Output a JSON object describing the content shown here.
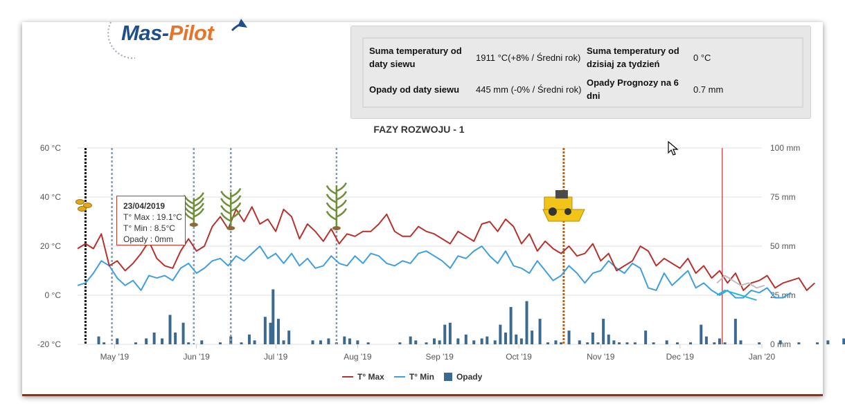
{
  "logo": {
    "part1": "Mas-",
    "part2": "Pilot"
  },
  "summary": {
    "rows": [
      {
        "label1": "Suma temperatury od daty siewu",
        "value1": "1911 °C(+8% / Średni rok)",
        "label2": "Suma temperatury od dzisiaj za tydzień",
        "value2": "0 °C"
      },
      {
        "label1": "Opady od daty siewu",
        "value1": "445 mm (-0% / Średni rok)",
        "label2": "Opady Prognozy na 6 dni",
        "value2": "0.7 mm"
      }
    ]
  },
  "tooltip": {
    "date": "23/04/2019",
    "tmax": "T° Max : 19.1°C",
    "tmin": "T° Min : 8.5°C",
    "rain": "Opady : 0mm"
  },
  "colors": {
    "tmax": "#b7312c",
    "tmin": "#3d9ee0",
    "rain": "#3a6a92",
    "forecast_max": "#bdbdbd",
    "forecast_min": "#29b6d8",
    "today_line": "#b7312c"
  },
  "chart_data": {
    "type": "line",
    "title": "FAZY ROZWOJU - 1",
    "x_range": [
      "2019-04-17",
      "2020-01-01"
    ],
    "x_ticks": [
      "May '19",
      "Jun '19",
      "Jul '19",
      "Aug '19",
      "Sep '19",
      "Oct '19",
      "Nov '19",
      "Dec '19",
      "Jan '20"
    ],
    "y_left": {
      "ticks": [
        "60 °C",
        "40 °C",
        "20 °C",
        "0 °C",
        "-20 °C"
      ],
      "range": [
        -20,
        60
      ]
    },
    "y_right": {
      "ticks": [
        "100 mm",
        "75 mm",
        "50 mm",
        "25 mm",
        "0 mm"
      ],
      "range": [
        0,
        100
      ]
    },
    "legend": [
      "T° Max",
      "T° Min",
      "Opady"
    ],
    "phase_markers": [
      {
        "date": "2019-04-20",
        "style": "sowing"
      },
      {
        "date": "2019-04-30",
        "style": "phase"
      },
      {
        "date": "2019-05-31",
        "style": "phase"
      },
      {
        "date": "2019-06-14",
        "style": "phase"
      },
      {
        "date": "2019-07-24",
        "style": "phase"
      },
      {
        "date": "2019-10-18",
        "style": "harvest"
      }
    ],
    "today": "2019-12-17",
    "series": [
      {
        "name": "T° Max",
        "values": [
          [
            0,
            19
          ],
          [
            3,
            21
          ],
          [
            6,
            19
          ],
          [
            9,
            25
          ],
          [
            12,
            12
          ],
          [
            15,
            14
          ],
          [
            18,
            10
          ],
          [
            21,
            13
          ],
          [
            24,
            17
          ],
          [
            27,
            22
          ],
          [
            30,
            15
          ],
          [
            33,
            12
          ],
          [
            36,
            11
          ],
          [
            39,
            18
          ],
          [
            42,
            23
          ],
          [
            45,
            18
          ],
          [
            48,
            20
          ],
          [
            51,
            28
          ],
          [
            54,
            32
          ],
          [
            57,
            27
          ],
          [
            60,
            35
          ],
          [
            63,
            30
          ],
          [
            66,
            36
          ],
          [
            69,
            29
          ],
          [
            72,
            31
          ],
          [
            75,
            26
          ],
          [
            78,
            35
          ],
          [
            81,
            32
          ],
          [
            84,
            23
          ],
          [
            87,
            29
          ],
          [
            90,
            26
          ],
          [
            93,
            22
          ],
          [
            96,
            27
          ],
          [
            99,
            21
          ],
          [
            102,
            25
          ],
          [
            105,
            24
          ],
          [
            108,
            26
          ],
          [
            111,
            26
          ],
          [
            114,
            29
          ],
          [
            117,
            33
          ],
          [
            120,
            26
          ],
          [
            123,
            24
          ],
          [
            126,
            24
          ],
          [
            129,
            28
          ],
          [
            132,
            26
          ],
          [
            135,
            25
          ],
          [
            138,
            23
          ],
          [
            141,
            21
          ],
          [
            144,
            26
          ],
          [
            147,
            24
          ],
          [
            150,
            22
          ],
          [
            153,
            29
          ],
          [
            156,
            30
          ],
          [
            159,
            26
          ],
          [
            162,
            31
          ],
          [
            165,
            28
          ],
          [
            168,
            21
          ],
          [
            171,
            25
          ],
          [
            174,
            18
          ],
          [
            177,
            22
          ],
          [
            180,
            19
          ],
          [
            183,
            17
          ],
          [
            186,
            20
          ],
          [
            189,
            16
          ],
          [
            192,
            17
          ],
          [
            195,
            21
          ],
          [
            198,
            14
          ],
          [
            201,
            17
          ],
          [
            204,
            10
          ],
          [
            207,
            12
          ],
          [
            210,
            14
          ],
          [
            213,
            20
          ],
          [
            216,
            18
          ],
          [
            219,
            12
          ],
          [
            222,
            15
          ],
          [
            225,
            13
          ],
          [
            228,
            11
          ],
          [
            231,
            15
          ],
          [
            234,
            9
          ],
          [
            237,
            12
          ],
          [
            240,
            7
          ],
          [
            243,
            10
          ],
          [
            246,
            5
          ],
          [
            249,
            9
          ],
          [
            252,
            2
          ],
          [
            255,
            5
          ],
          [
            258,
            6
          ],
          [
            261,
            8
          ],
          [
            264,
            3
          ],
          [
            267,
            5
          ],
          [
            270,
            6
          ],
          [
            273,
            7
          ],
          [
            276,
            2
          ],
          [
            279,
            5
          ]
        ]
      },
      {
        "name": "T° Min",
        "values": [
          [
            0,
            4
          ],
          [
            3,
            5
          ],
          [
            6,
            9
          ],
          [
            9,
            14
          ],
          [
            12,
            12
          ],
          [
            15,
            7
          ],
          [
            18,
            4
          ],
          [
            21,
            6
          ],
          [
            24,
            2
          ],
          [
            27,
            8
          ],
          [
            30,
            7
          ],
          [
            33,
            8
          ],
          [
            36,
            6
          ],
          [
            39,
            11
          ],
          [
            42,
            13
          ],
          [
            45,
            9
          ],
          [
            48,
            11
          ],
          [
            51,
            14
          ],
          [
            54,
            15
          ],
          [
            57,
            12
          ],
          [
            60,
            16
          ],
          [
            63,
            14
          ],
          [
            66,
            17
          ],
          [
            69,
            20
          ],
          [
            72,
            15
          ],
          [
            75,
            17
          ],
          [
            78,
            13
          ],
          [
            81,
            17
          ],
          [
            84,
            12
          ],
          [
            87,
            15
          ],
          [
            90,
            11
          ],
          [
            93,
            12
          ],
          [
            96,
            16
          ],
          [
            99,
            13
          ],
          [
            102,
            12
          ],
          [
            105,
            16
          ],
          [
            108,
            13
          ],
          [
            111,
            17
          ],
          [
            114,
            16
          ],
          [
            117,
            13
          ],
          [
            120,
            12
          ],
          [
            123,
            14
          ],
          [
            126,
            13
          ],
          [
            129,
            17
          ],
          [
            132,
            18
          ],
          [
            135,
            16
          ],
          [
            138,
            14
          ],
          [
            141,
            11
          ],
          [
            144,
            16
          ],
          [
            147,
            15
          ],
          [
            150,
            18
          ],
          [
            153,
            20
          ],
          [
            156,
            16
          ],
          [
            159,
            13
          ],
          [
            162,
            18
          ],
          [
            165,
            12
          ],
          [
            168,
            11
          ],
          [
            171,
            9
          ],
          [
            174,
            14
          ],
          [
            177,
            10
          ],
          [
            180,
            6
          ],
          [
            183,
            8
          ],
          [
            186,
            12
          ],
          [
            189,
            9
          ],
          [
            192,
            5
          ],
          [
            195,
            9
          ],
          [
            198,
            10
          ],
          [
            201,
            14
          ],
          [
            204,
            11
          ],
          [
            207,
            9
          ],
          [
            210,
            13
          ],
          [
            213,
            11
          ],
          [
            216,
            3
          ],
          [
            219,
            2
          ],
          [
            222,
            9
          ],
          [
            225,
            4
          ],
          [
            228,
            7
          ],
          [
            231,
            10
          ],
          [
            234,
            3
          ],
          [
            237,
            5
          ],
          [
            240,
            2
          ],
          [
            243,
            0
          ],
          [
            246,
            2
          ],
          [
            249,
            -1
          ],
          [
            252,
            -1
          ],
          [
            255,
            2
          ],
          [
            258,
            1
          ],
          [
            261,
            3
          ],
          [
            264,
            -1
          ],
          [
            267,
            -1
          ],
          [
            270,
            1
          ]
        ]
      },
      {
        "name": "T° Max (prognoza)",
        "values": [
          [
            242,
            5
          ],
          [
            245,
            8
          ],
          [
            248,
            6
          ],
          [
            251,
            4
          ],
          [
            254,
            5
          ],
          [
            257,
            3
          ],
          [
            260,
            4
          ]
        ]
      },
      {
        "name": "T° Min (prognoza)",
        "values": [
          [
            242,
            0
          ],
          [
            245,
            2
          ],
          [
            248,
            1
          ],
          [
            251,
            0
          ],
          [
            254,
            -1
          ],
          [
            257,
            -2
          ]
        ]
      },
      {
        "name": "Opady",
        "values": [
          [
            8,
            4
          ],
          [
            10,
            1
          ],
          [
            15,
            3
          ],
          [
            22,
            1
          ],
          [
            26,
            3
          ],
          [
            29,
            6
          ],
          [
            32,
            3
          ],
          [
            35,
            15
          ],
          [
            37,
            6
          ],
          [
            40,
            11
          ],
          [
            42,
            1
          ],
          [
            47,
            2
          ],
          [
            54,
            1
          ],
          [
            58,
            4
          ],
          [
            62,
            1
          ],
          [
            65,
            5
          ],
          [
            67,
            2
          ],
          [
            71,
            14
          ],
          [
            73,
            11
          ],
          [
            74,
            28
          ],
          [
            76,
            13
          ],
          [
            78,
            2
          ],
          [
            80,
            7
          ],
          [
            89,
            2
          ],
          [
            92,
            2
          ],
          [
            95,
            3
          ],
          [
            98,
            1
          ],
          [
            101,
            4
          ],
          [
            103,
            3
          ],
          [
            106,
            2
          ],
          [
            110,
            1
          ],
          [
            122,
            1
          ],
          [
            126,
            4
          ],
          [
            128,
            2
          ],
          [
            132,
            1
          ],
          [
            135,
            3
          ],
          [
            137,
            2
          ],
          [
            139,
            10
          ],
          [
            141,
            11
          ],
          [
            144,
            3
          ],
          [
            147,
            5
          ],
          [
            150,
            2
          ],
          [
            153,
            3
          ],
          [
            155,
            4
          ],
          [
            158,
            2
          ],
          [
            160,
            10
          ],
          [
            162,
            6
          ],
          [
            164,
            19
          ],
          [
            166,
            5
          ],
          [
            168,
            3
          ],
          [
            170,
            22
          ],
          [
            172,
            7
          ],
          [
            175,
            13
          ],
          [
            178,
            1
          ],
          [
            181,
            2
          ],
          [
            183,
            1
          ],
          [
            186,
            7
          ],
          [
            190,
            2
          ],
          [
            193,
            1
          ],
          [
            195,
            6
          ],
          [
            197,
            1
          ],
          [
            199,
            13
          ],
          [
            201,
            5
          ],
          [
            203,
            2
          ],
          [
            205,
            1
          ],
          [
            208,
            1
          ],
          [
            211,
            1
          ],
          [
            215,
            7
          ],
          [
            218,
            1
          ],
          [
            223,
            2
          ],
          [
            227,
            1
          ],
          [
            232,
            1
          ],
          [
            236,
            10
          ],
          [
            238,
            4
          ],
          [
            241,
            1
          ],
          [
            243,
            3
          ],
          [
            245,
            1
          ],
          [
            249,
            13
          ],
          [
            251,
            2
          ],
          [
            258,
            1
          ],
          [
            266,
            2
          ],
          [
            273,
            1
          ],
          [
            280,
            1
          ],
          [
            284,
            2
          ],
          [
            290,
            3
          ]
        ]
      }
    ]
  }
}
